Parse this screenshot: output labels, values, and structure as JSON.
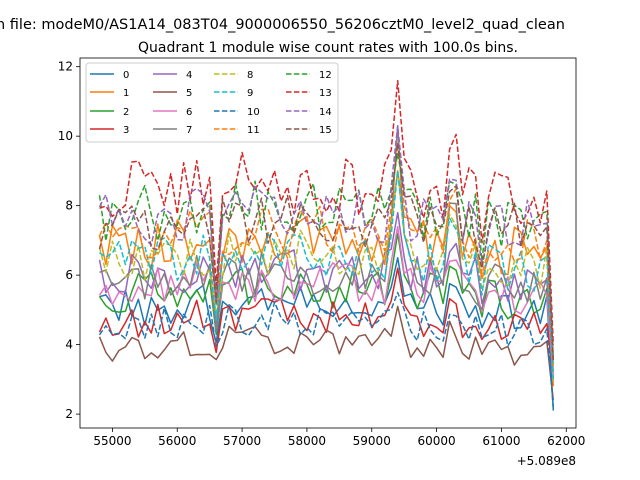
{
  "chart_data": {
    "type": "line",
    "suptitle": "n file: modeM0/AS1A14_083T04_9000006550_56206cztM0_level2_quad_clean",
    "title": "Quadrant 1 module wise count rates with 100.0s bins.",
    "xlabel": "",
    "ylabel": "",
    "x_offset_label": "+5.089e8",
    "xlim": [
      54500,
      62150
    ],
    "ylim": [
      1.6,
      12.25
    ],
    "grid": false,
    "legend_position": "top-left",
    "x_ticks": [
      55000,
      56000,
      57000,
      58000,
      59000,
      60000,
      61000,
      62000
    ],
    "x_tick_labels": [
      "55000",
      "56000",
      "57000",
      "58000",
      "59000",
      "60000",
      "61000",
      "62000"
    ],
    "y_ticks": [
      2,
      4,
      6,
      8,
      10,
      12
    ],
    "y_tick_labels": [
      "2",
      "4",
      "6",
      "8",
      "10",
      "12"
    ],
    "x_start": 54800,
    "x_step": 100,
    "x_end": 61800,
    "series": [
      {
        "name": "0",
        "color": "#1f77b4",
        "dash": "solid",
        "base": 5.0,
        "spike": 1.5,
        "dip": 1.7,
        "end": 2.1
      },
      {
        "name": "1",
        "color": "#ff7f0e",
        "dash": "solid",
        "base": 6.8,
        "spike": 2.2,
        "dip": 3.0,
        "end": 2.8
      },
      {
        "name": "2",
        "color": "#2ca02c",
        "dash": "solid",
        "base": 5.4,
        "spike": 1.8,
        "dip": 2.0,
        "end": 3.4
      },
      {
        "name": "3",
        "color": "#d62728",
        "dash": "solid",
        "base": 4.6,
        "spike": 1.6,
        "dip": 1.5,
        "end": 3.2
      },
      {
        "name": "4",
        "color": "#9467bd",
        "dash": "solid",
        "base": 5.9,
        "spike": 1.9,
        "dip": 2.4,
        "end": 3.0
      },
      {
        "name": "5",
        "color": "#8c564b",
        "dash": "solid",
        "base": 3.9,
        "spike": 1.2,
        "dip": 0.6,
        "end": 2.4
      },
      {
        "name": "6",
        "color": "#e377c2",
        "dash": "solid",
        "base": 5.6,
        "spike": 1.8,
        "dip": 2.2,
        "end": 3.0
      },
      {
        "name": "7",
        "color": "#7f7f7f",
        "dash": "solid",
        "base": 5.8,
        "spike": 4.5,
        "dip": 2.6,
        "end": 3.2
      },
      {
        "name": "8",
        "color": "#bcbd22",
        "dash": "dashed",
        "base": 6.4,
        "spike": 2.6,
        "dip": 2.8,
        "end": 3.0
      },
      {
        "name": "9",
        "color": "#17becf",
        "dash": "dashed",
        "base": 6.3,
        "spike": 2.7,
        "dip": 2.9,
        "end": 3.0
      },
      {
        "name": "10",
        "color": "#1f77b4",
        "dash": "dashed",
        "base": 4.5,
        "spike": 1.0,
        "dip": 1.0,
        "end": 2.2
      },
      {
        "name": "11",
        "color": "#ff7f0e",
        "dash": "dashed",
        "base": 7.0,
        "spike": 2.8,
        "dip": 3.2,
        "end": 3.4
      },
      {
        "name": "12",
        "color": "#2ca02c",
        "dash": "dashed",
        "base": 7.7,
        "spike": 1.8,
        "dip": 4.3,
        "end": 3.6
      },
      {
        "name": "13",
        "color": "#d62728",
        "dash": "dashed",
        "base": 8.4,
        "spike": 3.2,
        "dip": 4.9,
        "end": 4.0
      },
      {
        "name": "14",
        "color": "#9467bd",
        "dash": "dashed",
        "base": 7.5,
        "spike": 2.8,
        "dip": 4.2,
        "end": 3.6
      },
      {
        "name": "15",
        "color": "#8c564b",
        "dash": "dashed",
        "base": 7.4,
        "spike": 2.4,
        "dip": 4.0,
        "end": 3.5
      }
    ]
  }
}
